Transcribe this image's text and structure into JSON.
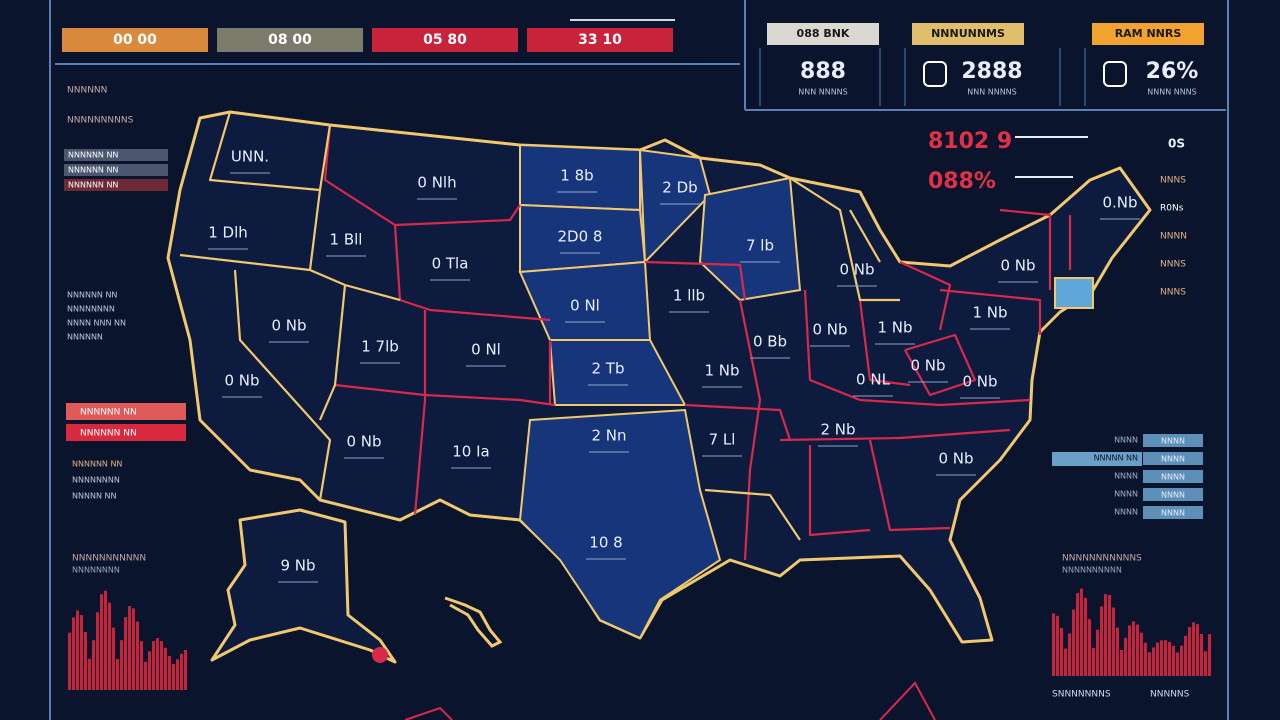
{
  "header": {
    "buttons": [
      "00 00",
      "08 00",
      "05 80",
      "33 10"
    ]
  },
  "stats": [
    {
      "label": "088 BNK",
      "value": "888",
      "caption": "NNN NNNNS"
    },
    {
      "label": "NNNUNNMS",
      "value": "2888",
      "caption": "NNN NNNNS"
    },
    {
      "label": "RAM NNRS",
      "value": "26%",
      "caption": "NNNN NNNS"
    }
  ],
  "alerts": [
    "8102 9",
    "088%"
  ],
  "left_panel": {
    "titles": [
      "NNNNNN",
      "NNNNNNNNNS"
    ],
    "rows": [
      "NNNNNN NN",
      "NNNNNN NN",
      "NNNNNN NN"
    ],
    "alerts": [
      "NNNNNN NN",
      "NNNNNN NN"
    ],
    "notes": [
      "NNNNNN NN",
      "NNNNNNNN",
      "NNNN NNN NN",
      "NNNNNN"
    ],
    "lower": [
      "NNNNNN NN",
      "NNNNNNNN",
      "NNNNN NN"
    ]
  },
  "right_panel": {
    "header": "0S",
    "notes": [
      "NNNS",
      "R0Ns",
      "NNNN",
      "NNNS",
      "NNNS"
    ],
    "rows": [
      "NNNN",
      "NNNNN NN",
      "NNNN",
      "NNNN",
      "NNNN"
    ],
    "cells": [
      "NNNN",
      "NNNN",
      "NNNN",
      "NNNN",
      "NNNN"
    ]
  },
  "map": {
    "labels": [
      "UNN.",
      "0 Nlh",
      "1 Dlh",
      "1 Bll",
      "0 Tla",
      "1 8b",
      "2 Db",
      "2D0 8",
      "7 lb",
      "0 Nb",
      "1 llb",
      "0.Nb",
      "0 Nl",
      "1 7lb",
      "0 Nl",
      "0 Bb",
      "2 Tb",
      "0 Nb",
      "1 Nb",
      "0 NL",
      "1 Nb",
      "0 Nb",
      "10 Ia",
      "2 Nn",
      "7 Ll",
      "1 Nb",
      "0 Nb",
      "0 Nb",
      "10 8",
      "9 Nb",
      "0 Nb",
      "2 Nb",
      "0 Nb",
      "0 Nb",
      "0 Nb"
    ]
  },
  "charts": [
    {
      "title": "NNNNNNNNNNN",
      "subtitle": "NNNNNNNN"
    },
    {
      "title": "NNNNNNNNNNNS",
      "subtitle": "NNNNNNNNNN",
      "footer": [
        "SNNNNNNNS",
        "NNNNNS"
      ]
    }
  ]
}
